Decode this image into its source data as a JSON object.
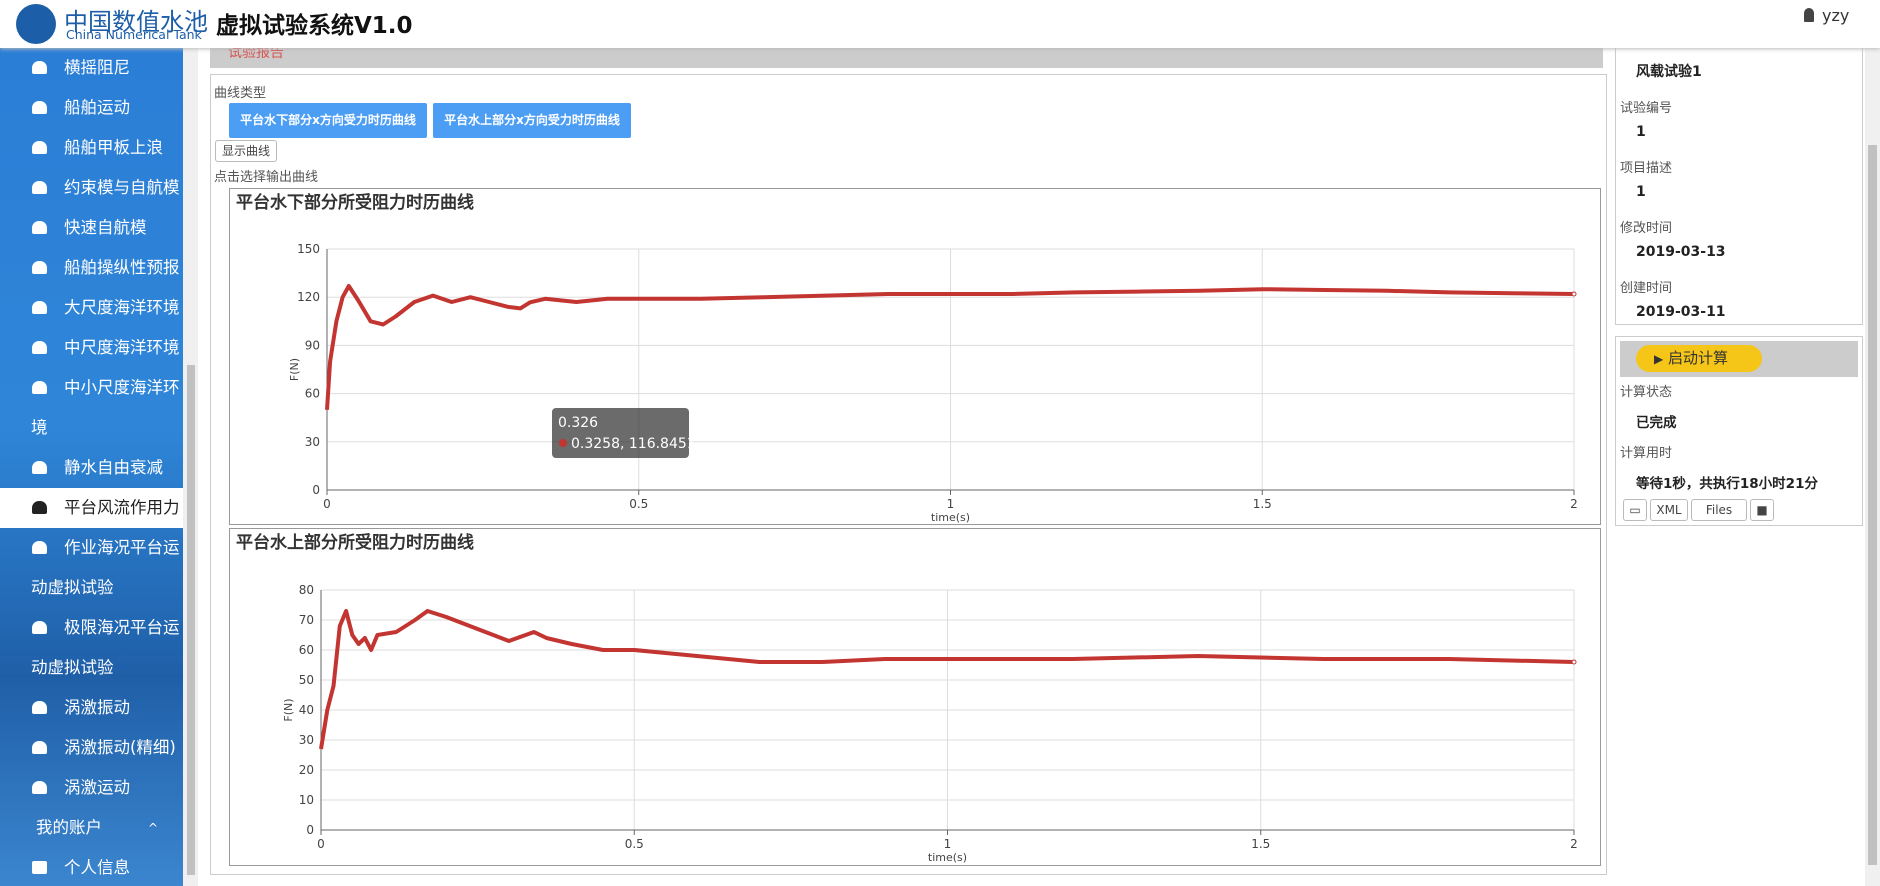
{
  "header": {
    "logo_cn": "中国数值水池",
    "logo_en": "China Numerical Tank",
    "title": "虚拟试验系统V1.0",
    "user": "yzy"
  },
  "sidebar": {
    "items": [
      "横摇阻尼",
      "船舶运动",
      "船舶甲板上浪",
      "约束模与自航模",
      "快速自航模",
      "船舶操纵性预报",
      "大尺度海洋环境",
      "中尺度海洋环境",
      "中小尺度海洋环境",
      "静水自由衰减",
      "平台风流作用力",
      "作业海况平台运动虚拟试验",
      "极限海况平台运动虚拟试验",
      "涡激振动",
      "涡激振动(精细)",
      "涡激运动"
    ],
    "active": 10,
    "account": "我的账户",
    "profile": "个人信息"
  },
  "report_link": "试验报告",
  "curve_panel": {
    "label": "曲线类型",
    "buttons": [
      "平台水下部分x方向受力时历曲线",
      "平台水上部分x方向受力时历曲线"
    ],
    "show_button": "显示曲线",
    "hint": "点击选择输出曲线"
  },
  "chart_data": [
    {
      "type": "line",
      "title": "平台水下部分所受阻力时历曲线",
      "x_label": "time(s)",
      "y_label": "F(N)",
      "xlim": [
        0,
        2
      ],
      "ylim": [
        0,
        150
      ],
      "xticks": [
        0,
        0.5,
        1,
        1.5,
        2
      ],
      "yticks": [
        0,
        30,
        60,
        90,
        120,
        150
      ],
      "grid": true,
      "x": [
        0,
        0.005,
        0.015,
        0.025,
        0.035,
        0.05,
        0.07,
        0.09,
        0.11,
        0.14,
        0.17,
        0.2,
        0.23,
        0.26,
        0.29,
        0.31,
        0.3258,
        0.35,
        0.4,
        0.45,
        0.5,
        0.6,
        0.7,
        0.8,
        0.9,
        1.0,
        1.1,
        1.2,
        1.3,
        1.4,
        1.5,
        1.6,
        1.7,
        1.8,
        1.9,
        2.0
      ],
      "series": [
        {
          "color": "#c23531",
          "values": [
            50,
            80,
            105,
            120,
            127,
            118,
            105,
            103,
            108,
            117,
            121,
            117,
            120,
            117,
            114,
            113,
            116.8,
            119,
            117,
            119,
            119,
            119,
            120,
            121,
            122,
            122,
            122,
            123,
            123.5,
            124,
            125,
            124.5,
            124,
            123,
            122.5,
            122
          ]
        }
      ],
      "tooltip": {
        "title": "0.326",
        "text": "0.3258, 116.8451"
      }
    },
    {
      "type": "line",
      "title": "平台水上部分所受阻力时历曲线",
      "x_label": "time(s)",
      "y_label": "F(N)",
      "xlim": [
        0,
        2
      ],
      "ylim": [
        0,
        80
      ],
      "xticks": [
        0,
        0.5,
        1,
        1.5,
        2
      ],
      "yticks": [
        0,
        10,
        20,
        30,
        40,
        50,
        60,
        70,
        80
      ],
      "grid": true,
      "x": [
        0,
        0.01,
        0.02,
        0.03,
        0.04,
        0.05,
        0.06,
        0.07,
        0.08,
        0.09,
        0.12,
        0.15,
        0.17,
        0.2,
        0.25,
        0.3,
        0.34,
        0.36,
        0.4,
        0.45,
        0.5,
        0.55,
        0.6,
        0.65,
        0.7,
        0.8,
        0.9,
        1.0,
        1.2,
        1.4,
        1.6,
        1.8,
        2.0
      ],
      "series": [
        {
          "color": "#c23531",
          "values": [
            27,
            40,
            48,
            68,
            73,
            65,
            62,
            64,
            60,
            65,
            66,
            70,
            73,
            71,
            67,
            63,
            66,
            64,
            62,
            60,
            60,
            59,
            58,
            57,
            56,
            56,
            57,
            57,
            57,
            58,
            57,
            57,
            56
          ]
        }
      ]
    }
  ],
  "info_panel": {
    "name": "风载试验1",
    "fields": [
      {
        "label": "试验编号",
        "value": "1"
      },
      {
        "label": "项目描述",
        "value": "1"
      },
      {
        "label": "修改时间",
        "value": "2019-03-13"
      },
      {
        "label": "创建时间",
        "value": "2019-03-11"
      }
    ]
  },
  "compute_panel": {
    "start_button": "启动计算",
    "fields": [
      {
        "label": "计算状态",
        "value": "已完成"
      },
      {
        "label": "计算用时",
        "value": "等待1秒，共执行18小时21分"
      }
    ],
    "buttons": [
      "XML",
      "Files"
    ]
  }
}
